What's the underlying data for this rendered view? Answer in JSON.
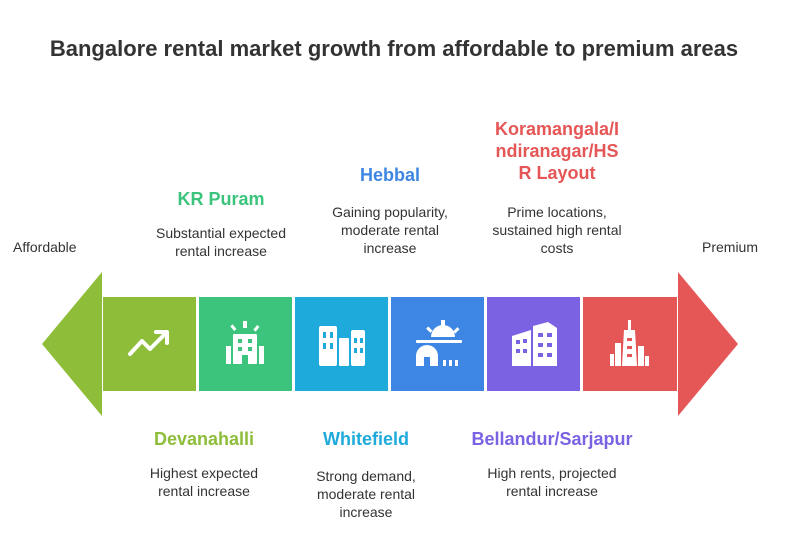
{
  "title": "Bangalore rental market growth from affordable to premium areas",
  "ends": {
    "left": "Affordable",
    "right": "Premium"
  },
  "colors": {
    "green_dark": "#8ebd3a",
    "green": "#3cc47c",
    "cyan": "#1eaadb",
    "blue": "#3d86e3",
    "purple": "#7b62e3",
    "red": "#e55656"
  },
  "segments": [
    {
      "name": "Devanahalli",
      "desc": [
        "Highest expected",
        "rental increase"
      ],
      "icon": "trend-up-icon",
      "color": "#8ebd3a",
      "heading_color": "#8ebd3a"
    },
    {
      "name": "KR Puram",
      "desc": [
        "Substantial expected",
        "rental increase"
      ],
      "icon": "building-icon",
      "color": "#3cc47c",
      "heading_color": "#3cc47c"
    },
    {
      "name": "Whitefield",
      "desc": [
        "Strong demand,",
        "moderate rental",
        "increase"
      ],
      "icon": "city-icon",
      "color": "#1eaadb",
      "heading_color": "#1eaadb"
    },
    {
      "name": "Hebbal",
      "desc": [
        "Gaining popularity,",
        "moderate rental",
        "increase"
      ],
      "icon": "sunrise-house-icon",
      "color": "#3d86e3",
      "heading_color": "#3d86e3"
    },
    {
      "name": "Bellandur/Sarjapur",
      "desc": [
        "High rents, projected",
        "rental increase"
      ],
      "icon": "buildings-cluster-icon",
      "color": "#7b62e3",
      "heading_color": "#7b62e3"
    },
    {
      "name_lines": [
        "Koramangala/I",
        "ndiranagar/HS",
        "R Layout"
      ],
      "desc": [
        "Prime locations,",
        "sustained high rental",
        "costs"
      ],
      "icon": "tower-icon",
      "color": "#e55656",
      "heading_color": "#e55656"
    }
  ]
}
